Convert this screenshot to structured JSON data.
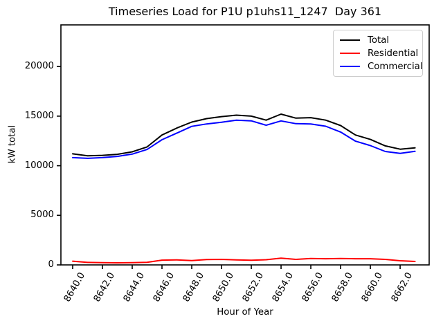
{
  "figure": {
    "background": "#ffffff",
    "text_color": "#000000",
    "spine_color": "#000000",
    "legend_border_color": "#cccccc"
  },
  "chart_data": {
    "type": "line",
    "title": "Timeseries Load for P1U p1uhs11_1247  Day 361",
    "xlabel": "Hour of Year",
    "ylabel": "kW total",
    "grid": false,
    "xlim": [
      8639.21,
      8663.95
    ],
    "ylim": [
      0,
      24200
    ],
    "x_ticks": [
      8640,
      8642,
      8644,
      8646,
      8648,
      8650,
      8652,
      8654,
      8656,
      8658,
      8660,
      8662
    ],
    "x_tick_labels": [
      "8640.0",
      "8642.0",
      "8644.0",
      "8646.0",
      "8648.0",
      "8650.0",
      "8652.0",
      "8654.0",
      "8656.0",
      "8658.0",
      "8660.0",
      "8662.0"
    ],
    "x_tick_rotation": 60,
    "y_ticks": [
      0,
      5000,
      10000,
      15000,
      20000
    ],
    "y_tick_labels": [
      "0",
      "5000",
      "10000",
      "15000",
      "20000"
    ],
    "x": [
      8640,
      8641,
      8642,
      8643,
      8644,
      8645,
      8646,
      8647,
      8648,
      8649,
      8650,
      8651,
      8652,
      8653,
      8654,
      8655,
      8656,
      8657,
      8658,
      8659,
      8660,
      8661,
      8662,
      8663
    ],
    "series": [
      {
        "name": "Total",
        "color": "#000000",
        "values": [
          11200,
          11000,
          11050,
          11150,
          11400,
          11900,
          13100,
          13800,
          14400,
          14750,
          14950,
          15100,
          15000,
          14600,
          15200,
          14800,
          14850,
          14600,
          14050,
          13100,
          12650,
          12000,
          11670,
          11800
        ]
      },
      {
        "name": "Residential",
        "color": "#ff0000",
        "values": [
          380,
          250,
          230,
          210,
          230,
          260,
          480,
          510,
          430,
          540,
          560,
          500,
          470,
          520,
          680,
          560,
          640,
          620,
          650,
          620,
          620,
          560,
          420,
          350
        ]
      },
      {
        "name": "Commercial",
        "color": "#0000ff",
        "values": [
          10820,
          10750,
          10820,
          10940,
          11170,
          11640,
          12620,
          13290,
          13970,
          14210,
          14390,
          14600,
          14530,
          14080,
          14520,
          14240,
          14210,
          13980,
          13400,
          12480,
          12030,
          11440,
          11250,
          11450
        ]
      }
    ],
    "legend": {
      "position": "upper right",
      "entries": [
        "Total",
        "Residential",
        "Commercial"
      ]
    }
  }
}
